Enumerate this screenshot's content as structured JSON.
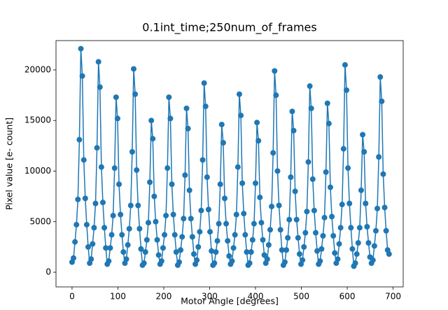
{
  "chart_data": {
    "type": "line",
    "title": "0.1int_time;250num_of_frames",
    "x_label": "Motor Angle [degrees]",
    "y_label": "Pixel value [e- count]",
    "xlim": [
      -35,
      722
    ],
    "ylim": [
      -1450,
      22900
    ],
    "xticks": [
      0,
      100,
      200,
      300,
      400,
      500,
      600,
      700
    ],
    "yticks": [
      0,
      5000,
      10000,
      15000,
      20000
    ],
    "series": [
      {
        "color": "#1f77b4",
        "marker": "o",
        "x": [
          0,
          3.2,
          6.4,
          9.6,
          12.8,
          16,
          19.2,
          22.4,
          25.6,
          28.8,
          32,
          35.2,
          38.4,
          41.6,
          44.8,
          48,
          51.2,
          54.4,
          57.6,
          60.8,
          64,
          67.2,
          70.4,
          73.6,
          76.8,
          80,
          83.2,
          86.4,
          89.6,
          92.8,
          96,
          99.2,
          102.4,
          105.6,
          108.8,
          112,
          115.2,
          118.4,
          121.6,
          124.8,
          128,
          131.2,
          134.4,
          137.6,
          140.8,
          144,
          147.2,
          150.4,
          153.6,
          156.8,
          160,
          163.2,
          166.4,
          169.6,
          172.8,
          176,
          179.2,
          182.4,
          185.6,
          188.8,
          192,
          195.2,
          198.4,
          201.6,
          204.8,
          208,
          211.2,
          214.4,
          217.6,
          220.8,
          224,
          227.2,
          230.4,
          233.6,
          236.8,
          240,
          243.2,
          246.4,
          249.6,
          252.8,
          256,
          259.2,
          262.4,
          265.6,
          268.8,
          272,
          275.2,
          278.4,
          281.6,
          284.8,
          288,
          291.2,
          294.4,
          297.6,
          300.8,
          304,
          307.2,
          310.4,
          313.6,
          316.8,
          320,
          323.2,
          326.4,
          329.6,
          332.8,
          336,
          339.2,
          342.4,
          345.6,
          348.8,
          352,
          355.2,
          358.4,
          361.6,
          364.8,
          368,
          371.2,
          374.4,
          377.6,
          380.8,
          384,
          387.2,
          390.4,
          393.6,
          396.8,
          400,
          403.2,
          406.4,
          409.6,
          412.8,
          416,
          419.2,
          422.4,
          425.6,
          428.8,
          432,
          435.2,
          438.4,
          441.6,
          444.8,
          448,
          451.2,
          454.4,
          457.6,
          460.8,
          464,
          467.2,
          470.4,
          473.6,
          476.8,
          480,
          483.2,
          486.4,
          489.6,
          492.8,
          496,
          499.2,
          502.4,
          505.6,
          508.8,
          512,
          515.2,
          518.4,
          521.6,
          524.8,
          528,
          531.2,
          534.4,
          537.6,
          540.8,
          544,
          547.2,
          550.4,
          553.6,
          556.8,
          560,
          563.2,
          566.4,
          569.6,
          572.8,
          576,
          579.2,
          582.4,
          585.6,
          588.8,
          592,
          595.2,
          598.4,
          601.6,
          604.8,
          608,
          611.2,
          614.4,
          617.6,
          620.8,
          624,
          627.2,
          630.4,
          633.6,
          636.8,
          640,
          643.2,
          646.4,
          649.6,
          652.8,
          656,
          659.2,
          662.4,
          665.6,
          668.8,
          672,
          675.2,
          678.4,
          681.6,
          684.8,
          688,
          691.2
        ],
        "values": [
          1000,
          1400,
          3000,
          4700,
          7200,
          13100,
          22100,
          19400,
          11100,
          7300,
          4700,
          2500,
          900,
          1300,
          2800,
          4400,
          6800,
          12300,
          20800,
          18300,
          10400,
          6900,
          4400,
          2400,
          800,
          1100,
          2400,
          3700,
          5600,
          10300,
          17300,
          15200,
          8700,
          5700,
          3700,
          2000,
          900,
          1300,
          2700,
          4300,
          6600,
          11900,
          20100,
          17600,
          10100,
          6600,
          4300,
          2300,
          700,
          900,
          2000,
          3200,
          4900,
          8900,
          15000,
          13200,
          7500,
          5000,
          3200,
          1700,
          800,
          1100,
          2400,
          3700,
          5600,
          10300,
          17300,
          15200,
          8700,
          5700,
          3700,
          2000,
          700,
          1000,
          2200,
          3500,
          5300,
          9600,
          16200,
          14200,
          8100,
          5300,
          3500,
          1800,
          800,
          1200,
          2500,
          4000,
          6100,
          11100,
          18700,
          16400,
          9400,
          6200,
          4000,
          2100,
          700,
          900,
          2000,
          3100,
          4800,
          8700,
          14600,
          12800,
          7300,
          4800,
          3100,
          1600,
          800,
          1100,
          2400,
          3700,
          5700,
          10400,
          17600,
          15500,
          8800,
          5800,
          3700,
          2000,
          700,
          900,
          2000,
          3200,
          4800,
          8800,
          14800,
          13000,
          7400,
          4900,
          3200,
          1700,
          900,
          1300,
          2700,
          4200,
          6500,
          11800,
          19900,
          17500,
          10000,
          6600,
          4200,
          2200,
          700,
          1000,
          2200,
          3400,
          5200,
          9400,
          15900,
          14000,
          8000,
          5200,
          3400,
          1800,
          800,
          1200,
          2500,
          3900,
          6000,
          10900,
          18400,
          16200,
          9200,
          6100,
          3900,
          2100,
          800,
          1100,
          2300,
          3600,
          5400,
          9900,
          16700,
          14700,
          8400,
          5500,
          3600,
          1900,
          900,
          1300,
          2800,
          4400,
          6700,
          12200,
          20500,
          18000,
          10300,
          6800,
          4400,
          2300,
          600,
          900,
          1800,
          2900,
          4400,
          8100,
          13600,
          11900,
          6800,
          4500,
          2900,
          1500,
          900,
          1200,
          2600,
          4100,
          6300,
          11400,
          19300,
          16900,
          9700,
          6400,
          4100,
          2200,
          1800
        ]
      }
    ]
  }
}
